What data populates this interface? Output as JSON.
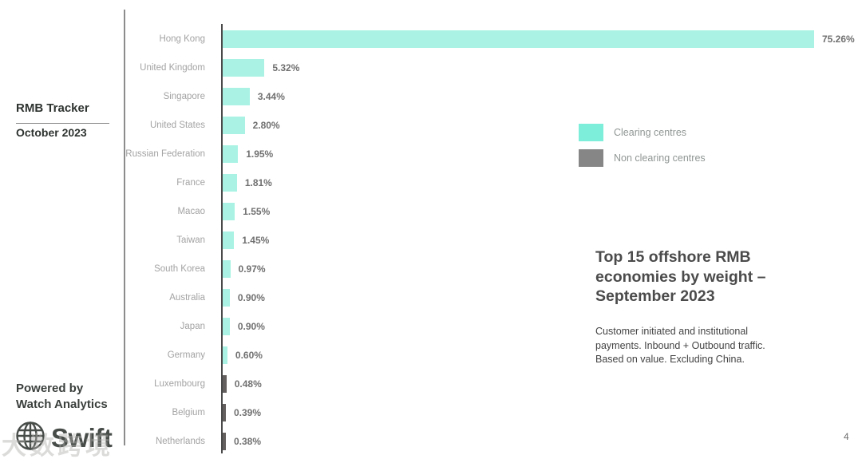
{
  "sidebar": {
    "report_title": "RMB Tracker",
    "report_date": "October 2023",
    "powered_by_line1": "Powered by",
    "powered_by_line2": "Watch Analytics",
    "brand_name": "Swift"
  },
  "chart_data": {
    "type": "bar",
    "orientation": "horizontal",
    "title": "Top 15 offshore RMB economies by weight – September 2023",
    "subtitle": "Customer initiated and institutional payments. Inbound + Outbound traffic. Based on value. Excluding China.",
    "xlabel": "",
    "ylabel": "",
    "xlim": [
      0,
      80
    ],
    "grid": false,
    "legend_position": "upper-right",
    "categories": [
      "Hong Kong",
      "United Kingdom",
      "Singapore",
      "United States",
      "Russian Federation",
      "France",
      "Macao",
      "Taiwan",
      "South Korea",
      "Australia",
      "Japan",
      "Germany",
      "Luxembourg",
      "Belgium",
      "Netherlands"
    ],
    "values": [
      75.26,
      5.32,
      3.44,
      2.8,
      1.95,
      1.81,
      1.55,
      1.45,
      0.97,
      0.9,
      0.9,
      0.6,
      0.48,
      0.39,
      0.38
    ],
    "value_labels": [
      "75.26%",
      "5.32%",
      "3.44%",
      "2.80%",
      "1.95%",
      "1.81%",
      "1.55%",
      "1.45%",
      "0.97%",
      "0.90%",
      "0.90%",
      "0.60%",
      "0.48%",
      "0.39%",
      "0.38%"
    ],
    "bar_types": [
      "clearing",
      "clearing",
      "clearing",
      "clearing",
      "clearing",
      "clearing",
      "clearing",
      "clearing",
      "clearing",
      "clearing",
      "clearing",
      "clearing",
      "non_clearing",
      "non_clearing",
      "non_clearing"
    ],
    "colors": {
      "clearing_bar": "#aaf3e4",
      "non_clearing_bar": "#645f5f",
      "clearing_legend": "#7ceeda",
      "non_clearing_legend": "#868686"
    },
    "legend": [
      {
        "label": "Clearing centres",
        "color": "#7ceeda"
      },
      {
        "label": "Non clearing centres",
        "color": "#868686"
      }
    ]
  },
  "annotation": {
    "title_lines": [
      "Top 15 offshore RMB",
      "economies by weight –",
      "September 2023"
    ],
    "subtitle_lines": [
      "Customer initiated and institutional",
      "payments. Inbound + Outbound traffic.",
      "Based on value. Excluding China."
    ]
  },
  "page_number": "4",
  "watermark": "大数跨境"
}
